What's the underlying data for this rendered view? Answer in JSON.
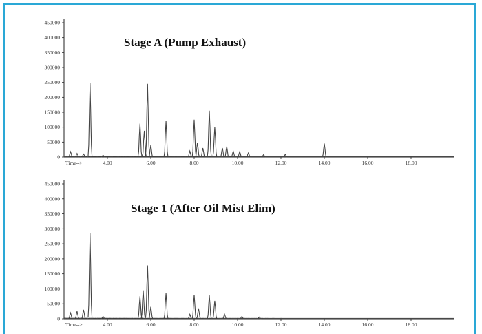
{
  "chart_data": [
    {
      "type": "line",
      "title": "Stage A (Pump Exhaust)",
      "ylim": [
        0,
        450000
      ],
      "yticks": [
        0,
        50000,
        100000,
        150000,
        200000,
        250000,
        300000,
        350000,
        400000,
        450000
      ],
      "ytick_labels": [
        "0",
        "50000",
        "100000",
        "150000",
        "200000",
        "250000",
        "300000",
        "350000",
        "400000",
        "450000"
      ],
      "xlim": [
        2.0,
        20.0
      ],
      "xticks": [
        4,
        6,
        8,
        10,
        12,
        14,
        16,
        18
      ],
      "xtick_labels": [
        "4.00",
        "6.00",
        "8.00",
        "10.00",
        "12.00",
        "14.00",
        "16.00",
        "18.00"
      ],
      "x_axis_prefix": "Time-->",
      "peaks": [
        {
          "x": 2.3,
          "y": 18000
        },
        {
          "x": 2.6,
          "y": 12000
        },
        {
          "x": 2.9,
          "y": 10000
        },
        {
          "x": 3.2,
          "y": 248000
        },
        {
          "x": 3.8,
          "y": 6000
        },
        {
          "x": 5.5,
          "y": 112000
        },
        {
          "x": 5.7,
          "y": 88000
        },
        {
          "x": 5.85,
          "y": 245000
        },
        {
          "x": 6.0,
          "y": 40000
        },
        {
          "x": 6.7,
          "y": 120000
        },
        {
          "x": 7.8,
          "y": 20000
        },
        {
          "x": 8.0,
          "y": 125000
        },
        {
          "x": 8.15,
          "y": 48000
        },
        {
          "x": 8.4,
          "y": 30000
        },
        {
          "x": 8.7,
          "y": 155000
        },
        {
          "x": 8.95,
          "y": 100000
        },
        {
          "x": 9.3,
          "y": 30000
        },
        {
          "x": 9.5,
          "y": 35000
        },
        {
          "x": 9.8,
          "y": 20000
        },
        {
          "x": 10.1,
          "y": 18000
        },
        {
          "x": 10.5,
          "y": 14000
        },
        {
          "x": 11.2,
          "y": 8000
        },
        {
          "x": 12.2,
          "y": 9000
        },
        {
          "x": 14.0,
          "y": 45000
        }
      ]
    },
    {
      "type": "line",
      "title": "Stage 1 (After Oil Mist Elim)",
      "ylim": [
        0,
        450000
      ],
      "yticks": [
        0,
        50000,
        100000,
        150000,
        200000,
        250000,
        300000,
        350000,
        400000,
        450000
      ],
      "ytick_labels": [
        "0",
        "50000",
        "100000",
        "150000",
        "200000",
        "250000",
        "300000",
        "350000",
        "400000",
        "450000"
      ],
      "xlim": [
        2.0,
        20.0
      ],
      "xticks": [
        4,
        6,
        8,
        10,
        12,
        14,
        16,
        18
      ],
      "xtick_labels": [
        "4.00",
        "6.00",
        "8.00",
        "10.00",
        "12.00",
        "14.00",
        "16.00",
        "18.00"
      ],
      "x_axis_prefix": "Time-->",
      "peaks": [
        {
          "x": 2.3,
          "y": 20000
        },
        {
          "x": 2.6,
          "y": 25000
        },
        {
          "x": 2.9,
          "y": 30000
        },
        {
          "x": 3.2,
          "y": 285000
        },
        {
          "x": 3.8,
          "y": 8000
        },
        {
          "x": 5.5,
          "y": 75000
        },
        {
          "x": 5.65,
          "y": 95000
        },
        {
          "x": 5.85,
          "y": 178000
        },
        {
          "x": 6.0,
          "y": 40000
        },
        {
          "x": 6.7,
          "y": 85000
        },
        {
          "x": 7.8,
          "y": 15000
        },
        {
          "x": 8.0,
          "y": 80000
        },
        {
          "x": 8.2,
          "y": 35000
        },
        {
          "x": 8.7,
          "y": 78000
        },
        {
          "x": 8.95,
          "y": 60000
        },
        {
          "x": 9.4,
          "y": 15000
        },
        {
          "x": 10.2,
          "y": 8000
        },
        {
          "x": 11.0,
          "y": 6000
        }
      ]
    }
  ]
}
